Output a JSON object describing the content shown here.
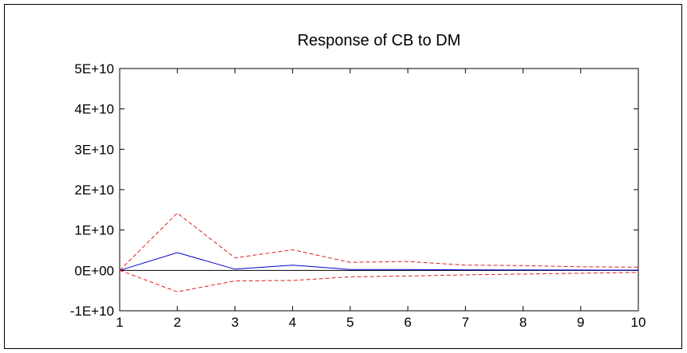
{
  "chart_data": {
    "type": "line",
    "title": "Response of CB to DM",
    "xlabel": "",
    "ylabel": "",
    "x": [
      1,
      2,
      3,
      4,
      5,
      6,
      7,
      8,
      9,
      10
    ],
    "xlim": [
      1,
      10
    ],
    "ylim": [
      -10000000000,
      50000000000
    ],
    "x_tick_labels": [
      "1",
      "2",
      "3",
      "4",
      "5",
      "6",
      "7",
      "8",
      "9",
      "10"
    ],
    "y_ticks": [
      -10000000000,
      0,
      10000000000,
      20000000000,
      30000000000,
      40000000000,
      50000000000
    ],
    "y_tick_labels": [
      "-1E+10",
      "0E+00",
      "1E+10",
      "2E+10",
      "3E+10",
      "4E+10",
      "5E+10"
    ],
    "zero_line": true,
    "grid": false,
    "legend": "none",
    "series": [
      {
        "role": "response",
        "color": "#0000cc",
        "style": "solid",
        "values": [
          0,
          4400000000,
          300000000,
          1300000000,
          200000000,
          200000000,
          150000000,
          100000000,
          80000000,
          60000000
        ]
      },
      {
        "role": "upper-band",
        "color": "#e02020",
        "style": "dashed",
        "values": [
          0,
          14200000000,
          3100000000,
          5100000000,
          2000000000,
          2200000000,
          1300000000,
          1200000000,
          900000000,
          800000000
        ]
      },
      {
        "role": "lower-band",
        "color": "#e02020",
        "style": "dashed",
        "values": [
          0,
          -5300000000,
          -2600000000,
          -2500000000,
          -1600000000,
          -1400000000,
          -1100000000,
          -900000000,
          -700000000,
          -500000000
        ]
      }
    ]
  }
}
